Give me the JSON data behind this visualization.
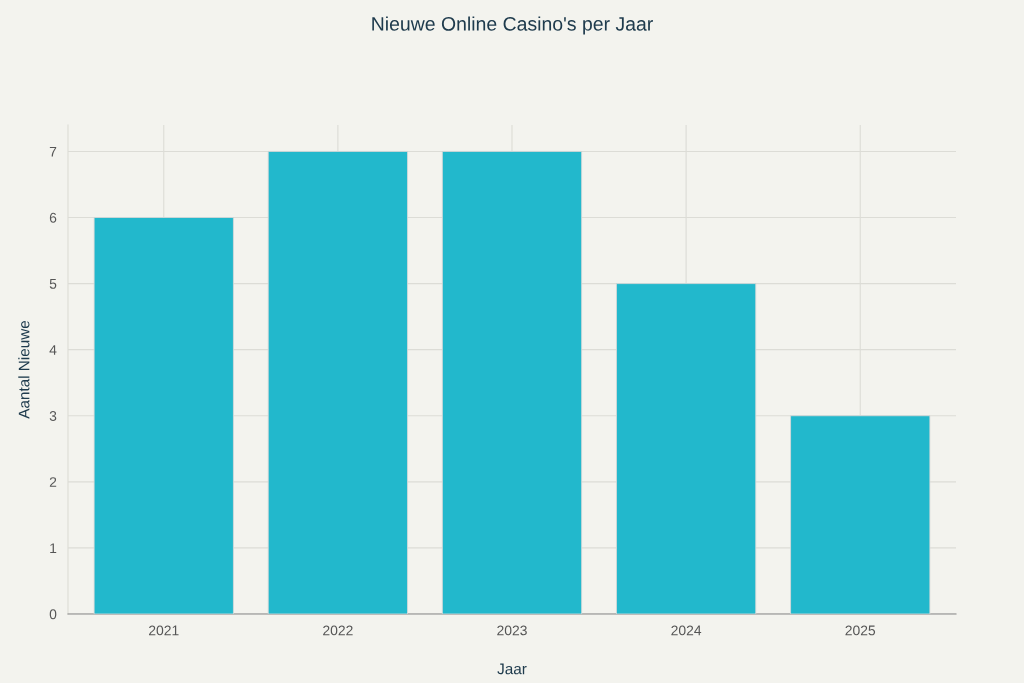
{
  "chart_data": {
    "type": "bar",
    "title": "Nieuwe Online Casino's per Jaar",
    "xlabel": "Jaar",
    "ylabel": "Aantal Nieuwe",
    "categories": [
      "2021",
      "2022",
      "2023",
      "2024",
      "2025"
    ],
    "values": [
      6,
      7,
      7,
      5,
      3
    ],
    "color": "#22b8cc",
    "ylim": [
      0,
      7.4
    ],
    "yticks": [
      0,
      1,
      2,
      3,
      4,
      5,
      6,
      7
    ],
    "grid": true
  }
}
